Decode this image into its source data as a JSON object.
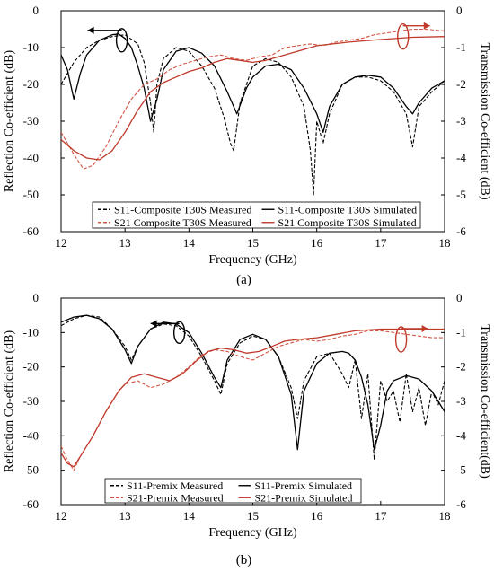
{
  "chart_data": [
    {
      "type": "line",
      "caption": "(a)",
      "xlabel": "Frequency (GHz)",
      "ylabel": "Reflection Co-efficient (dB)",
      "y2label": "Transmission Co-efficient (dB)",
      "xlim": [
        12,
        18
      ],
      "ylim": [
        -60,
        0
      ],
      "y2lim": [
        -6,
        0
      ],
      "xticks": [
        "12",
        "13",
        "14",
        "15",
        "16",
        "17",
        "18"
      ],
      "yticks": [
        "0",
        "-10",
        "-20",
        "-30",
        "-40",
        "-50",
        "-60"
      ],
      "y2ticks": [
        "0",
        "-1",
        "-2",
        "-3",
        "-4",
        "-5",
        "-6"
      ],
      "grid": false,
      "legend_position": "bottom",
      "colors": {
        "s11": "#000000",
        "s21": "#c0392b",
        "s21_measured": "#d35442"
      },
      "series": [
        {
          "name": "S11-Composite T30S Measured",
          "axis": "left",
          "style": "dashed",
          "color": "#000000",
          "x": [
            12.0,
            12.2,
            12.4,
            12.6,
            12.8,
            13.0,
            13.2,
            13.3,
            13.4,
            13.45,
            13.5,
            13.6,
            13.8,
            14.0,
            14.2,
            14.4,
            14.55,
            14.65,
            14.7,
            14.8,
            15.0,
            15.2,
            15.4,
            15.6,
            15.8,
            15.9,
            15.95,
            16.0,
            16.1,
            16.2,
            16.4,
            16.6,
            16.8,
            17.0,
            17.2,
            17.4,
            17.5,
            17.6,
            17.8,
            18.0
          ],
          "y": [
            -20,
            -14,
            -10,
            -8,
            -7,
            -6.5,
            -9,
            -14,
            -25,
            -33,
            -20,
            -13,
            -10,
            -11,
            -15,
            -21,
            -29,
            -36,
            -38,
            -25,
            -15,
            -13,
            -14,
            -18,
            -26,
            -38,
            -50,
            -30,
            -36,
            -28,
            -20,
            -18,
            -18,
            -19,
            -22,
            -28,
            -37,
            -26,
            -22,
            -19
          ]
        },
        {
          "name": "S11-Composite T30S Simulated",
          "axis": "left",
          "style": "solid",
          "color": "#000000",
          "x": [
            12.0,
            12.1,
            12.2,
            12.3,
            12.4,
            12.6,
            12.8,
            12.9,
            13.0,
            13.1,
            13.2,
            13.3,
            13.4,
            13.5,
            13.6,
            13.8,
            14.0,
            14.2,
            14.4,
            14.6,
            14.75,
            14.9,
            15.0,
            15.2,
            15.4,
            15.6,
            15.8,
            16.0,
            16.1,
            16.2,
            16.4,
            16.6,
            16.8,
            17.0,
            17.2,
            17.4,
            17.5,
            17.6,
            17.8,
            18.0
          ],
          "y": [
            -12,
            -16,
            -24,
            -17,
            -12,
            -8,
            -6.5,
            -6.3,
            -7.5,
            -10,
            -15,
            -21,
            -30,
            -24,
            -16,
            -11,
            -10,
            -11.5,
            -15,
            -22,
            -28,
            -21,
            -18,
            -15,
            -14.5,
            -16,
            -21,
            -28,
            -33,
            -26,
            -20,
            -18,
            -17.5,
            -18,
            -21,
            -26,
            -28,
            -25,
            -21,
            -19
          ]
        },
        {
          "name": "S21 Composite T30S Measured",
          "axis": "right",
          "style": "dashed",
          "color": "#d35442",
          "x": [
            12.0,
            12.2,
            12.35,
            12.5,
            12.7,
            12.9,
            13.1,
            13.3,
            13.5,
            13.7,
            13.9,
            14.1,
            14.3,
            14.5,
            14.7,
            14.9,
            15.1,
            15.3,
            15.5,
            15.7,
            15.9,
            16.1,
            16.3,
            16.5,
            16.7,
            16.9,
            17.1,
            17.3,
            17.5,
            17.7,
            18.0
          ],
          "y": [
            -3.3,
            -3.9,
            -4.3,
            -4.2,
            -3.7,
            -3.0,
            -2.4,
            -2.0,
            -1.85,
            -1.6,
            -1.45,
            -1.35,
            -1.25,
            -1.2,
            -1.3,
            -1.35,
            -1.25,
            -1.2,
            -1.0,
            -0.95,
            -0.9,
            -0.95,
            -0.85,
            -0.8,
            -0.75,
            -0.65,
            -0.6,
            -0.55,
            -0.5,
            -0.5,
            -0.55
          ]
        },
        {
          "name": "S21 Composite T30S Simulated",
          "axis": "right",
          "style": "solid",
          "color": "#c0392b",
          "x": [
            12.0,
            12.2,
            12.4,
            12.6,
            12.8,
            13.0,
            13.2,
            13.4,
            13.6,
            13.8,
            14.0,
            14.2,
            14.4,
            14.6,
            14.8,
            15.0,
            15.2,
            15.4,
            15.6,
            15.8,
            16.0,
            16.5,
            17.0,
            17.5,
            18.0
          ],
          "y": [
            -3.5,
            -3.8,
            -4.0,
            -4.05,
            -3.8,
            -3.3,
            -2.7,
            -2.2,
            -1.95,
            -1.8,
            -1.65,
            -1.55,
            -1.4,
            -1.3,
            -1.35,
            -1.4,
            -1.35,
            -1.25,
            -1.15,
            -1.05,
            -0.95,
            -0.85,
            -0.78,
            -0.72,
            -0.7
          ]
        }
      ]
    },
    {
      "type": "line",
      "caption": "(b)",
      "xlabel": "Frequency (GHz)",
      "ylabel": "Reflection Co-efficient (dB)",
      "y2label": "Transmission Co-efficient(dB)",
      "xlim": [
        12,
        18
      ],
      "ylim": [
        -60,
        0
      ],
      "y2lim": [
        -6,
        0
      ],
      "xticks": [
        "12",
        "13",
        "14",
        "15",
        "16",
        "17",
        "18"
      ],
      "yticks": [
        "0",
        "-10",
        "-20",
        "-30",
        "-40",
        "-50",
        "-60"
      ],
      "y2ticks": [
        "0",
        "-1",
        "-2",
        "-3",
        "-4",
        "-5",
        "-6"
      ],
      "grid": false,
      "legend_position": "bottom",
      "colors": {
        "s11": "#000000",
        "s21": "#c0392b",
        "s21_measured": "#d35442"
      },
      "series": [
        {
          "name": "S11-Premix Measured",
          "axis": "left",
          "style": "dashed",
          "color": "#000000",
          "x": [
            12.0,
            12.2,
            12.4,
            12.6,
            12.8,
            13.0,
            13.1,
            13.2,
            13.4,
            13.6,
            13.8,
            14.0,
            14.2,
            14.4,
            14.5,
            14.6,
            14.8,
            15.0,
            15.2,
            15.4,
            15.6,
            15.7,
            15.8,
            16.0,
            16.2,
            16.4,
            16.5,
            16.6,
            16.7,
            16.8,
            16.9,
            17.0,
            17.1,
            17.2,
            17.3,
            17.4,
            17.5,
            17.6,
            17.7,
            17.8,
            17.9,
            18.0
          ],
          "y": [
            -8,
            -6,
            -5,
            -5.5,
            -9,
            -14,
            -18,
            -14,
            -9,
            -7.5,
            -8,
            -11,
            -17,
            -24,
            -28,
            -19,
            -13,
            -11,
            -12,
            -17,
            -26,
            -35,
            -24,
            -17,
            -16,
            -22,
            -26,
            -18,
            -35,
            -22,
            -47,
            -24,
            -30,
            -27,
            -36,
            -22,
            -33,
            -26,
            -37,
            -27,
            -31,
            -24
          ]
        },
        {
          "name": "S11-Premix Simulated",
          "axis": "left",
          "style": "solid",
          "color": "#000000",
          "x": [
            12.0,
            12.2,
            12.4,
            12.6,
            12.8,
            13.0,
            13.1,
            13.2,
            13.4,
            13.6,
            13.8,
            14.0,
            14.2,
            14.4,
            14.5,
            14.6,
            14.8,
            15.0,
            15.2,
            15.4,
            15.6,
            15.7,
            15.8,
            16.0,
            16.2,
            16.4,
            16.5,
            16.6,
            16.7,
            16.8,
            16.9,
            17.0,
            17.1,
            17.2,
            17.4,
            17.6,
            17.8,
            18.0
          ],
          "y": [
            -7,
            -5.5,
            -5,
            -6,
            -9,
            -15,
            -19,
            -14,
            -9,
            -7,
            -7.5,
            -10,
            -16,
            -23,
            -26,
            -18,
            -12,
            -10.5,
            -12,
            -17,
            -28,
            -44,
            -27,
            -19,
            -16,
            -15.5,
            -16,
            -18,
            -23,
            -31,
            -44,
            -37,
            -27,
            -24,
            -22.5,
            -23.5,
            -27,
            -33
          ]
        },
        {
          "name": "S21-Premix Measured",
          "axis": "right",
          "style": "dashed",
          "color": "#d35442",
          "x": [
            12.0,
            12.1,
            12.2,
            12.3,
            12.5,
            12.7,
            12.9,
            13.0,
            13.2,
            13.4,
            13.6,
            13.8,
            14.0,
            14.2,
            14.4,
            14.6,
            14.8,
            15.0,
            15.2,
            15.4,
            15.6,
            15.8,
            16.0,
            16.2,
            16.4,
            16.6,
            16.8,
            17.0,
            17.2,
            17.4,
            17.6,
            17.8,
            18.0
          ],
          "y": [
            -4.3,
            -4.7,
            -5.0,
            -4.6,
            -4.0,
            -3.3,
            -2.7,
            -2.5,
            -2.4,
            -2.6,
            -2.5,
            -2.3,
            -2.0,
            -1.65,
            -1.5,
            -1.55,
            -1.7,
            -1.8,
            -1.6,
            -1.4,
            -1.3,
            -1.2,
            -1.25,
            -1.2,
            -1.1,
            -1.05,
            -0.95,
            -0.95,
            -1.0,
            -1.05,
            -1.1,
            -1.15,
            -1.15
          ]
        },
        {
          "name": "S21-Premix Simulated",
          "axis": "right",
          "style": "solid",
          "color": "#c0392b",
          "x": [
            12.0,
            12.1,
            12.2,
            12.3,
            12.5,
            12.7,
            12.9,
            13.1,
            13.3,
            13.5,
            13.7,
            13.9,
            14.1,
            14.3,
            14.5,
            14.7,
            14.9,
            15.1,
            15.3,
            15.5,
            15.7,
            16.0,
            16.3,
            16.6,
            17.0,
            17.5,
            18.0
          ],
          "y": [
            -4.5,
            -4.8,
            -4.9,
            -4.6,
            -4.0,
            -3.3,
            -2.7,
            -2.3,
            -2.2,
            -2.3,
            -2.4,
            -2.2,
            -1.85,
            -1.55,
            -1.45,
            -1.5,
            -1.6,
            -1.55,
            -1.4,
            -1.25,
            -1.2,
            -1.15,
            -1.05,
            -0.95,
            -0.9,
            -0.9,
            -0.9
          ]
        }
      ]
    }
  ]
}
